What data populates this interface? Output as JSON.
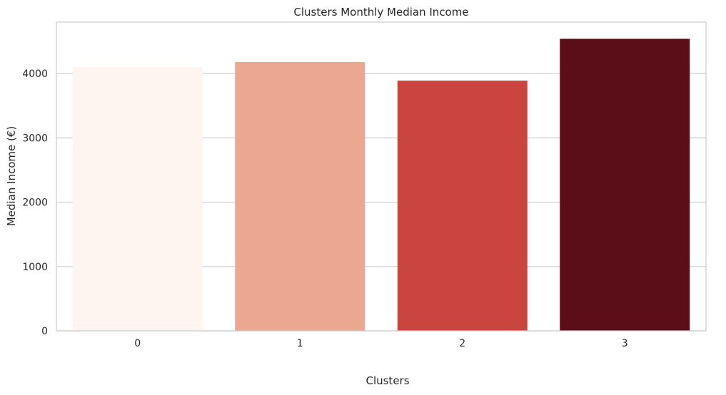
{
  "chart_data": {
    "type": "bar",
    "title": "Clusters Monthly Median Income",
    "xlabel": "Clusters",
    "ylabel": "Median Income (€)",
    "categories": [
      "0",
      "1",
      "2",
      "3"
    ],
    "values": [
      4100,
      4180,
      3890,
      4540
    ],
    "colors": [
      "#fff5f0",
      "#eca791",
      "#cb4540",
      "#5c0e18"
    ],
    "ylim": [
      0,
      4800
    ],
    "yticks": [
      0,
      1000,
      2000,
      3000,
      4000
    ],
    "ytick_labels": [
      "0",
      "1000",
      "2000",
      "3000",
      "4000"
    ],
    "grid": "horizontal",
    "legend": "none"
  }
}
